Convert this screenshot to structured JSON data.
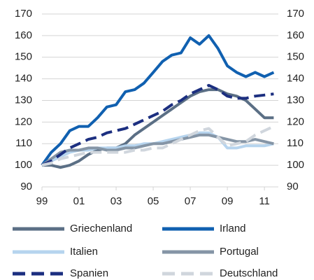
{
  "chart_data": {
    "type": "line",
    "x": [
      1999,
      1999.5,
      2000,
      2000.5,
      2001,
      2001.5,
      2002,
      2002.5,
      2003,
      2003.5,
      2004,
      2004.5,
      2005,
      2005.5,
      2006,
      2006.5,
      2007,
      2007.5,
      2008,
      2008.5,
      2009,
      2009.5,
      2010,
      2010.5,
      2011,
      2011.5
    ],
    "series": [
      {
        "name": "Griechenland",
        "color": "#5b6f85",
        "dash": false,
        "values": [
          100,
          100,
          99,
          100,
          102,
          105,
          107,
          108,
          108,
          110,
          114,
          117,
          120,
          123,
          126,
          129,
          132,
          134,
          135,
          135,
          133,
          132,
          130,
          126,
          122,
          122
        ]
      },
      {
        "name": "Irland",
        "color": "#1060b0",
        "dash": false,
        "values": [
          100,
          106,
          110,
          116,
          118,
          118,
          122,
          127,
          128,
          134,
          135,
          138,
          143,
          148,
          151,
          152,
          159,
          156,
          160,
          154,
          146,
          143,
          141,
          143,
          141,
          143
        ]
      },
      {
        "name": "Italien",
        "color": "#b6d4ee",
        "dash": false,
        "values": [
          100,
          102,
          104,
          106,
          107,
          107,
          108,
          108,
          108,
          109,
          109,
          110,
          110,
          111,
          112,
          113,
          114,
          115,
          115,
          113,
          108,
          108,
          109,
          109,
          109,
          110
        ]
      },
      {
        "name": "Portugal",
        "color": "#8595a6",
        "dash": false,
        "values": [
          100,
          103,
          106,
          107,
          107,
          108,
          108,
          107,
          107,
          108,
          108,
          109,
          110,
          110,
          111,
          112,
          113,
          114,
          114,
          113,
          112,
          111,
          111,
          112,
          111,
          110
        ]
      },
      {
        "name": "Spanien",
        "color": "#1c2f80",
        "dash": true,
        "values": [
          100,
          102,
          105,
          108,
          110,
          112,
          113,
          115,
          116,
          117,
          119,
          121,
          123,
          125,
          128,
          130,
          133,
          135,
          137,
          135,
          132,
          131,
          131,
          132,
          132.5,
          133
        ]
      },
      {
        "name": "Deutschland",
        "color": "#d0d6dd",
        "dash": true,
        "values": [
          100,
          101,
          103,
          104,
          105,
          106,
          106,
          106,
          106,
          106,
          107,
          107,
          108,
          108,
          110,
          112,
          114,
          116,
          117,
          113,
          109,
          110,
          111,
          114,
          116,
          118
        ]
      }
    ],
    "xlim": [
      1999,
      2011.75
    ],
    "xticks": [
      {
        "value": 1999,
        "label": "99"
      },
      {
        "value": 2001,
        "label": "01"
      },
      {
        "value": 2003,
        "label": "03"
      },
      {
        "value": 2005,
        "label": "05"
      },
      {
        "value": 2007,
        "label": "07"
      },
      {
        "value": 2009,
        "label": "09"
      },
      {
        "value": 2011,
        "label": "11"
      }
    ],
    "ylim": [
      90,
      170
    ],
    "yticks": [
      90,
      100,
      110,
      120,
      130,
      140,
      150,
      160,
      170
    ],
    "y2lim": [
      90,
      170
    ],
    "y2ticks": [
      90,
      100,
      110,
      120,
      130,
      140,
      150,
      160,
      170
    ],
    "grid": true
  }
}
